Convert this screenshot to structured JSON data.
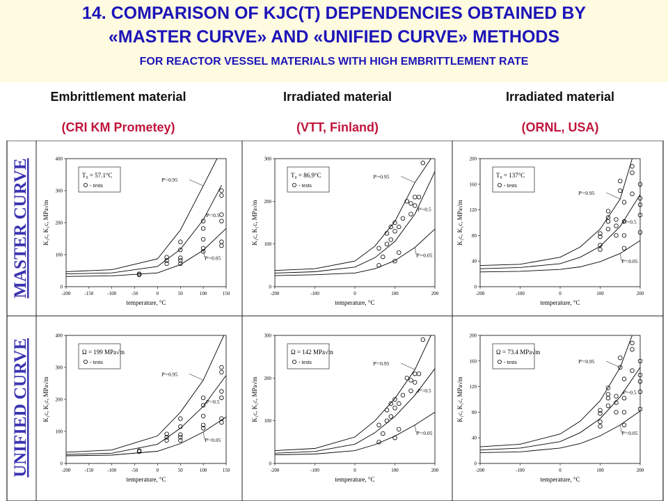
{
  "title": {
    "line1": "14. COMPARISON OF KJC(T) DEPENDENCIES OBTAINED BY",
    "line2": "«MASTER CURVE» AND «UNIFIED CURVE» METHODS",
    "line3": "FOR REACTOR VESSEL MATERIALS  WITH HIGH EMBRITTLEMENT RATE"
  },
  "columns": [
    {
      "name": "Embrittlement material",
      "sub": "(CRI KM Prometey)"
    },
    {
      "name": "Irradiated material",
      "sub": "(VTT, Finland)"
    },
    {
      "name": "Irradiated material",
      "sub": "(ORNL, USA)"
    }
  ],
  "row_labels": [
    "MASTER CURVE",
    "UNIFIED CURVE"
  ],
  "colors": {
    "title": "#1c14b8",
    "subtitle": "#c0153b",
    "row_label": "#3a33b0",
    "curve": "#000000"
  },
  "axis_text": {
    "xlabel": "temperature, °C",
    "ylabel": "K₁c, K₁c, MPa√m",
    "tests": "- tests",
    "pf_high": "Pᶠ=0.95",
    "pf_mid": "Pᶠ=0.5",
    "pf_low": "Pᶠ=0.05"
  },
  "chart_data": [
    {
      "type": "scatter",
      "row": "master",
      "column": 0,
      "param": "T₀ = 57.1°C",
      "xlim": [
        -200,
        150
      ],
      "ylim": [
        0,
        400
      ],
      "xticks": [
        "-200",
        "-150",
        "-100",
        "-50",
        "0",
        "50",
        "100",
        "150"
      ],
      "yticks": [
        "0",
        "100",
        "200",
        "300",
        "400"
      ],
      "series": [
        {
          "name": "Pᶠ=0.95",
          "x": [
            -200,
            -100,
            0,
            50,
            100,
            130
          ],
          "y": [
            47,
            53,
            87,
            177,
            315,
            400
          ]
        },
        {
          "name": "Pᶠ=0.5",
          "x": [
            -200,
            -100,
            0,
            50,
            100,
            140
          ],
          "y": [
            40,
            43,
            63,
            117,
            209,
            317
          ]
        },
        {
          "name": "Pᶠ=0.05",
          "x": [
            -200,
            -100,
            0,
            50,
            100,
            150
          ],
          "y": [
            32,
            34,
            43,
            69,
            114,
            182
          ]
        }
      ],
      "points": [
        [
          -40,
          40
        ],
        [
          -40,
          37
        ],
        [
          20,
          92
        ],
        [
          20,
          82
        ],
        [
          20,
          72
        ],
        [
          50,
          140
        ],
        [
          50,
          115
        ],
        [
          50,
          90
        ],
        [
          50,
          82
        ],
        [
          50,
          72
        ],
        [
          100,
          205
        ],
        [
          100,
          182
        ],
        [
          100,
          148
        ],
        [
          100,
          120
        ],
        [
          100,
          110
        ],
        [
          140,
          300
        ],
        [
          140,
          285
        ],
        [
          140,
          225
        ],
        [
          140,
          205
        ],
        [
          140,
          140
        ],
        [
          140,
          128
        ]
      ]
    },
    {
      "type": "scatter",
      "row": "master",
      "column": 1,
      "param": "T₀ = 86.9°C",
      "xlim": [
        -200,
        200
      ],
      "ylim": [
        0,
        300
      ],
      "xticks": [
        "-200",
        "-100",
        "0",
        "100",
        "200"
      ],
      "yticks": [
        "0",
        "100",
        "200",
        "300"
      ],
      "series": [
        {
          "name": "Pᶠ=0.95",
          "x": [
            -200,
            -100,
            0,
            50,
            100,
            150,
            190
          ],
          "y": [
            38,
            42,
            60,
            95,
            153,
            244,
            300
          ]
        },
        {
          "name": "Pᶠ=0.5",
          "x": [
            -200,
            -100,
            0,
            50,
            100,
            150,
            200
          ],
          "y": [
            32,
            35,
            46,
            68,
            106,
            170,
            270
          ]
        },
        {
          "name": "Pᶠ=0.05",
          "x": [
            -200,
            -100,
            0,
            50,
            100,
            150,
            200
          ],
          "y": [
            26,
            28,
            32,
            42,
            61,
            92,
            135
          ]
        }
      ],
      "points": [
        [
          60,
          50
        ],
        [
          60,
          90
        ],
        [
          70,
          70
        ],
        [
          80,
          100
        ],
        [
          80,
          125
        ],
        [
          90,
          110
        ],
        [
          90,
          140
        ],
        [
          100,
          60
        ],
        [
          100,
          130
        ],
        [
          100,
          150
        ],
        [
          110,
          80
        ],
        [
          110,
          140
        ],
        [
          120,
          160
        ],
        [
          130,
          200
        ],
        [
          140,
          195
        ],
        [
          140,
          170
        ],
        [
          150,
          210
        ],
        [
          150,
          190
        ],
        [
          160,
          210
        ],
        [
          170,
          290
        ]
      ]
    },
    {
      "type": "scatter",
      "row": "master",
      "column": 2,
      "param": "T₀ = 137°C",
      "xlim": [
        -200,
        200
      ],
      "ylim": [
        0,
        200
      ],
      "xticks": [
        "-200",
        "-100",
        "0",
        "100",
        "200"
      ],
      "yticks": [
        "0",
        "40",
        "80",
        "120",
        "160",
        "200"
      ],
      "series": [
        {
          "name": "Pᶠ=0.95",
          "x": [
            -200,
            -100,
            0,
            50,
            100,
            150,
            180
          ],
          "y": [
            33,
            35,
            46,
            62,
            90,
            137,
            200
          ]
        },
        {
          "name": "Pᶠ=0.5",
          "x": [
            -200,
            -100,
            0,
            50,
            100,
            150,
            200
          ],
          "y": [
            28,
            30,
            36,
            46,
            63,
            94,
            144
          ]
        },
        {
          "name": "Pᶠ=0.05",
          "x": [
            -200,
            -100,
            0,
            50,
            100,
            150,
            200
          ],
          "y": [
            23,
            24,
            27,
            31,
            39,
            52,
            72
          ]
        }
      ],
      "points": [
        [
          100,
          58
        ],
        [
          100,
          65
        ],
        [
          100,
          78
        ],
        [
          100,
          83
        ],
        [
          120,
          90
        ],
        [
          120,
          102
        ],
        [
          120,
          108
        ],
        [
          120,
          118
        ],
        [
          140,
          80
        ],
        [
          140,
          95
        ],
        [
          140,
          105
        ],
        [
          150,
          150
        ],
        [
          150,
          165
        ],
        [
          160,
          60
        ],
        [
          160,
          80
        ],
        [
          160,
          102
        ],
        [
          160,
          132
        ],
        [
          180,
          145
        ],
        [
          180,
          178
        ],
        [
          180,
          188
        ],
        [
          200,
          85
        ],
        [
          200,
          112
        ],
        [
          200,
          128
        ],
        [
          200,
          138
        ],
        [
          200,
          160
        ]
      ]
    },
    {
      "type": "scatter",
      "row": "unified",
      "column": 0,
      "param": "Ω = 199 MPa√m",
      "xlim": [
        -200,
        150
      ],
      "ylim": [
        0,
        400
      ],
      "xticks": [
        "-200",
        "-150",
        "-100",
        "-50",
        "0",
        "50",
        "100",
        "150"
      ],
      "yticks": [
        "0",
        "100",
        "200",
        "300",
        "400"
      ],
      "series": [
        {
          "name": "Pᶠ=0.95",
          "x": [
            -200,
            -100,
            0,
            50,
            100,
            145
          ],
          "y": [
            35,
            42,
            86,
            160,
            260,
            400
          ]
        },
        {
          "name": "Pᶠ=0.5",
          "x": [
            -200,
            -100,
            0,
            50,
            100,
            150
          ],
          "y": [
            28,
            32,
            60,
            110,
            178,
            275
          ]
        },
        {
          "name": "Pᶠ=0.05",
          "x": [
            -200,
            -100,
            0,
            50,
            100,
            150
          ],
          "y": [
            24,
            26,
            38,
            62,
            98,
            145
          ]
        }
      ],
      "points": [
        [
          -40,
          40
        ],
        [
          -40,
          37
        ],
        [
          20,
          92
        ],
        [
          20,
          82
        ],
        [
          20,
          72
        ],
        [
          50,
          140
        ],
        [
          50,
          115
        ],
        [
          50,
          90
        ],
        [
          50,
          82
        ],
        [
          50,
          72
        ],
        [
          100,
          205
        ],
        [
          100,
          182
        ],
        [
          100,
          148
        ],
        [
          100,
          120
        ],
        [
          100,
          110
        ],
        [
          140,
          300
        ],
        [
          140,
          285
        ],
        [
          140,
          225
        ],
        [
          140,
          205
        ],
        [
          140,
          140
        ],
        [
          140,
          128
        ]
      ]
    },
    {
      "type": "scatter",
      "row": "unified",
      "column": 1,
      "param": "Ω = 142 MPa√m",
      "xlim": [
        -200,
        200
      ],
      "ylim": [
        0,
        300
      ],
      "xticks": [
        "-200",
        "-100",
        "0",
        "100",
        "200"
      ],
      "yticks": [
        "0",
        "100",
        "200",
        "300"
      ],
      "series": [
        {
          "name": "Pᶠ=0.95",
          "x": [
            -200,
            -100,
            0,
            50,
            100,
            150,
            190
          ],
          "y": [
            30,
            35,
            62,
            100,
            152,
            220,
            300
          ]
        },
        {
          "name": "Pᶠ=0.5",
          "x": [
            -200,
            -100,
            0,
            50,
            100,
            150,
            200
          ],
          "y": [
            24,
            28,
            45,
            72,
            110,
            160,
            222
          ]
        },
        {
          "name": "Pᶠ=0.05",
          "x": [
            -200,
            -100,
            0,
            50,
            100,
            150,
            200
          ],
          "y": [
            20,
            22,
            30,
            44,
            64,
            90,
            120
          ]
        }
      ],
      "points": [
        [
          60,
          50
        ],
        [
          60,
          90
        ],
        [
          70,
          70
        ],
        [
          80,
          100
        ],
        [
          80,
          125
        ],
        [
          90,
          110
        ],
        [
          90,
          140
        ],
        [
          100,
          60
        ],
        [
          100,
          130
        ],
        [
          100,
          150
        ],
        [
          110,
          80
        ],
        [
          110,
          140
        ],
        [
          120,
          160
        ],
        [
          130,
          200
        ],
        [
          140,
          195
        ],
        [
          140,
          170
        ],
        [
          150,
          210
        ],
        [
          150,
          190
        ],
        [
          160,
          210
        ],
        [
          170,
          290
        ]
      ]
    },
    {
      "type": "scatter",
      "row": "unified",
      "column": 2,
      "param": "Ω = 73.4 MPa√m",
      "xlim": [
        -200,
        200
      ],
      "ylim": [
        0,
        200
      ],
      "xticks": [
        "-200",
        "-100",
        "0",
        "100",
        "200"
      ],
      "yticks": [
        "0",
        "40",
        "80",
        "120",
        "160",
        "200"
      ],
      "series": [
        {
          "name": "Pᶠ=0.95",
          "x": [
            -200,
            -100,
            0,
            50,
            100,
            150,
            180
          ],
          "y": [
            26,
            30,
            46,
            66,
            98,
            150,
            200
          ]
        },
        {
          "name": "Pᶠ=0.5",
          "x": [
            -200,
            -100,
            0,
            50,
            100,
            150,
            200
          ],
          "y": [
            21,
            24,
            34,
            48,
            70,
            104,
            150
          ]
        },
        {
          "name": "Pᶠ=0.05",
          "x": [
            -200,
            -100,
            0,
            50,
            100,
            150,
            200
          ],
          "y": [
            17,
            18,
            24,
            31,
            43,
            60,
            82
          ]
        }
      ],
      "points": [
        [
          100,
          58
        ],
        [
          100,
          65
        ],
        [
          100,
          78
        ],
        [
          100,
          83
        ],
        [
          120,
          90
        ],
        [
          120,
          102
        ],
        [
          120,
          108
        ],
        [
          120,
          118
        ],
        [
          140,
          80
        ],
        [
          140,
          95
        ],
        [
          140,
          105
        ],
        [
          150,
          150
        ],
        [
          150,
          165
        ],
        [
          160,
          60
        ],
        [
          160,
          80
        ],
        [
          160,
          102
        ],
        [
          160,
          132
        ],
        [
          180,
          145
        ],
        [
          180,
          178
        ],
        [
          180,
          188
        ],
        [
          200,
          85
        ],
        [
          200,
          112
        ],
        [
          200,
          128
        ],
        [
          200,
          138
        ],
        [
          200,
          160
        ]
      ]
    }
  ]
}
